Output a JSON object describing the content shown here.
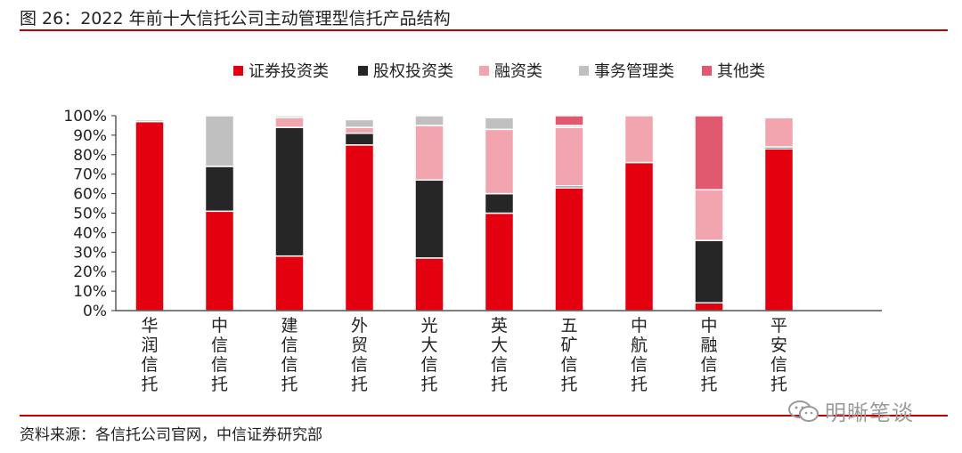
{
  "title": "图 26：2022 年前十大信托公司主动管理型信托产品结构",
  "source": "资料来源：各信托公司官网，中信证券研究部",
  "watermark": "明晰笔谈",
  "chart_data": {
    "type": "bar",
    "stacked": true,
    "categories": [
      "华润信托",
      "中信信托",
      "建信信托",
      "外贸信托",
      "光大信托",
      "英大信托",
      "五矿信托",
      "中航信托",
      "中融信托",
      "平安信托"
    ],
    "series": [
      {
        "name": "证券投资类",
        "color": "#e3000f",
        "values": [
          97,
          51,
          28,
          85,
          27,
          50,
          63,
          76,
          4,
          83
        ]
      },
      {
        "name": "股权投资类",
        "color": "#262626",
        "values": [
          0,
          23,
          66,
          6,
          40,
          10,
          1,
          0,
          32,
          1
        ]
      },
      {
        "name": "融资类",
        "color": "#f2a5ae",
        "values": [
          0,
          0,
          5,
          3,
          28,
          33,
          30,
          24,
          26,
          15
        ]
      },
      {
        "name": "事务管理类",
        "color": "#c0c0c0",
        "values": [
          1,
          26,
          1,
          4,
          5,
          6,
          1,
          0,
          0,
          0
        ]
      },
      {
        "name": "其他类",
        "color": "#e0596f",
        "values": [
          0,
          0,
          0,
          0,
          0,
          0,
          5,
          0,
          38,
          0
        ]
      }
    ],
    "ylim": [
      0,
      100
    ],
    "yticks": [
      "0%",
      "10%",
      "20%",
      "30%",
      "40%",
      "50%",
      "60%",
      "70%",
      "80%",
      "90%",
      "100%"
    ],
    "legend": "top",
    "grid": false
  }
}
